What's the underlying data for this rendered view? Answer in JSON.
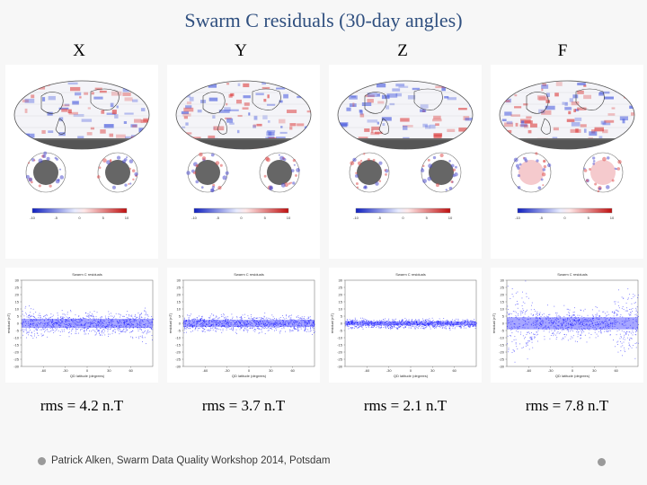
{
  "title": "Swarm C residuals (30-day angles)",
  "columns": [
    {
      "label": "X",
      "rms": "rms = 4.2 n.T"
    },
    {
      "label": "Y",
      "rms": "rms = 3.7 n.T"
    },
    {
      "label": "Z",
      "rms": "rms = 2.1 n.T"
    },
    {
      "label": "F",
      "rms": "rms = 7.8 n.T"
    }
  ],
  "footer": {
    "text": "Patrick Alken, Swarm Data Quality Workshop 2014, Potsdam"
  },
  "colors": {
    "title": "#2f4f7f",
    "negative": "#2233dd",
    "positive": "#dd2222",
    "scatter": "#0000ff"
  },
  "chart_data": [
    {
      "type": "scatter",
      "title": "Swarm C residuals",
      "xlabel": "QD latitude (degrees)",
      "ylabel": "residual (nT)",
      "ylim": [
        -30,
        30
      ],
      "xticks": [
        "-60",
        "-30",
        "0",
        "30",
        "60"
      ],
      "yticks": [
        "30",
        "25",
        "20",
        "15",
        "10",
        "5",
        "0",
        "-5",
        "-10",
        "-15",
        "-20",
        "-25",
        "-30"
      ],
      "series": [
        {
          "name": "X",
          "spread": 9
        }
      ],
      "colorbar_ticks": [
        "-10",
        "-5",
        "0",
        "5",
        "10"
      ]
    },
    {
      "type": "scatter",
      "title": "Swarm C residuals",
      "xlabel": "QD latitude (degrees)",
      "ylabel": "residual (nT)",
      "ylim": [
        -30,
        30
      ],
      "xticks": [
        "-60",
        "-30",
        "0",
        "30",
        "60"
      ],
      "yticks": [
        "30",
        "25",
        "20",
        "15",
        "10",
        "5",
        "0",
        "-5",
        "-10",
        "-15",
        "-20",
        "-25",
        "-30"
      ],
      "series": [
        {
          "name": "Y",
          "spread": 7
        }
      ],
      "colorbar_ticks": [
        "-10",
        "-5",
        "0",
        "5",
        "10"
      ]
    },
    {
      "type": "scatter",
      "title": "Swarm C residuals",
      "xlabel": "QD latitude (degrees)",
      "ylabel": "residual (nT)",
      "ylim": [
        -30,
        30
      ],
      "xticks": [
        "-60",
        "-30",
        "0",
        "30",
        "60"
      ],
      "yticks": [
        "30",
        "25",
        "20",
        "15",
        "10",
        "5",
        "0",
        "-5",
        "-10",
        "-15",
        "-20",
        "-25",
        "-30"
      ],
      "series": [
        {
          "name": "Z",
          "spread": 4
        }
      ],
      "colorbar_ticks": [
        "-10",
        "-5",
        "0",
        "5",
        "10"
      ]
    },
    {
      "type": "scatter",
      "title": "Swarm C residuals",
      "xlabel": "QD latitude (degrees)",
      "ylabel": "residual (nT)",
      "ylim": [
        -30,
        30
      ],
      "xticks": [
        "-60",
        "-30",
        "0",
        "30",
        "60"
      ],
      "yticks": [
        "30",
        "25",
        "20",
        "15",
        "10",
        "5",
        "0",
        "-5",
        "-10",
        "-15",
        "-20",
        "-25",
        "-30"
      ],
      "series": [
        {
          "name": "F",
          "spread": 12
        }
      ],
      "colorbar_ticks": [
        "-10",
        "-5",
        "0",
        "5",
        "10"
      ]
    }
  ]
}
